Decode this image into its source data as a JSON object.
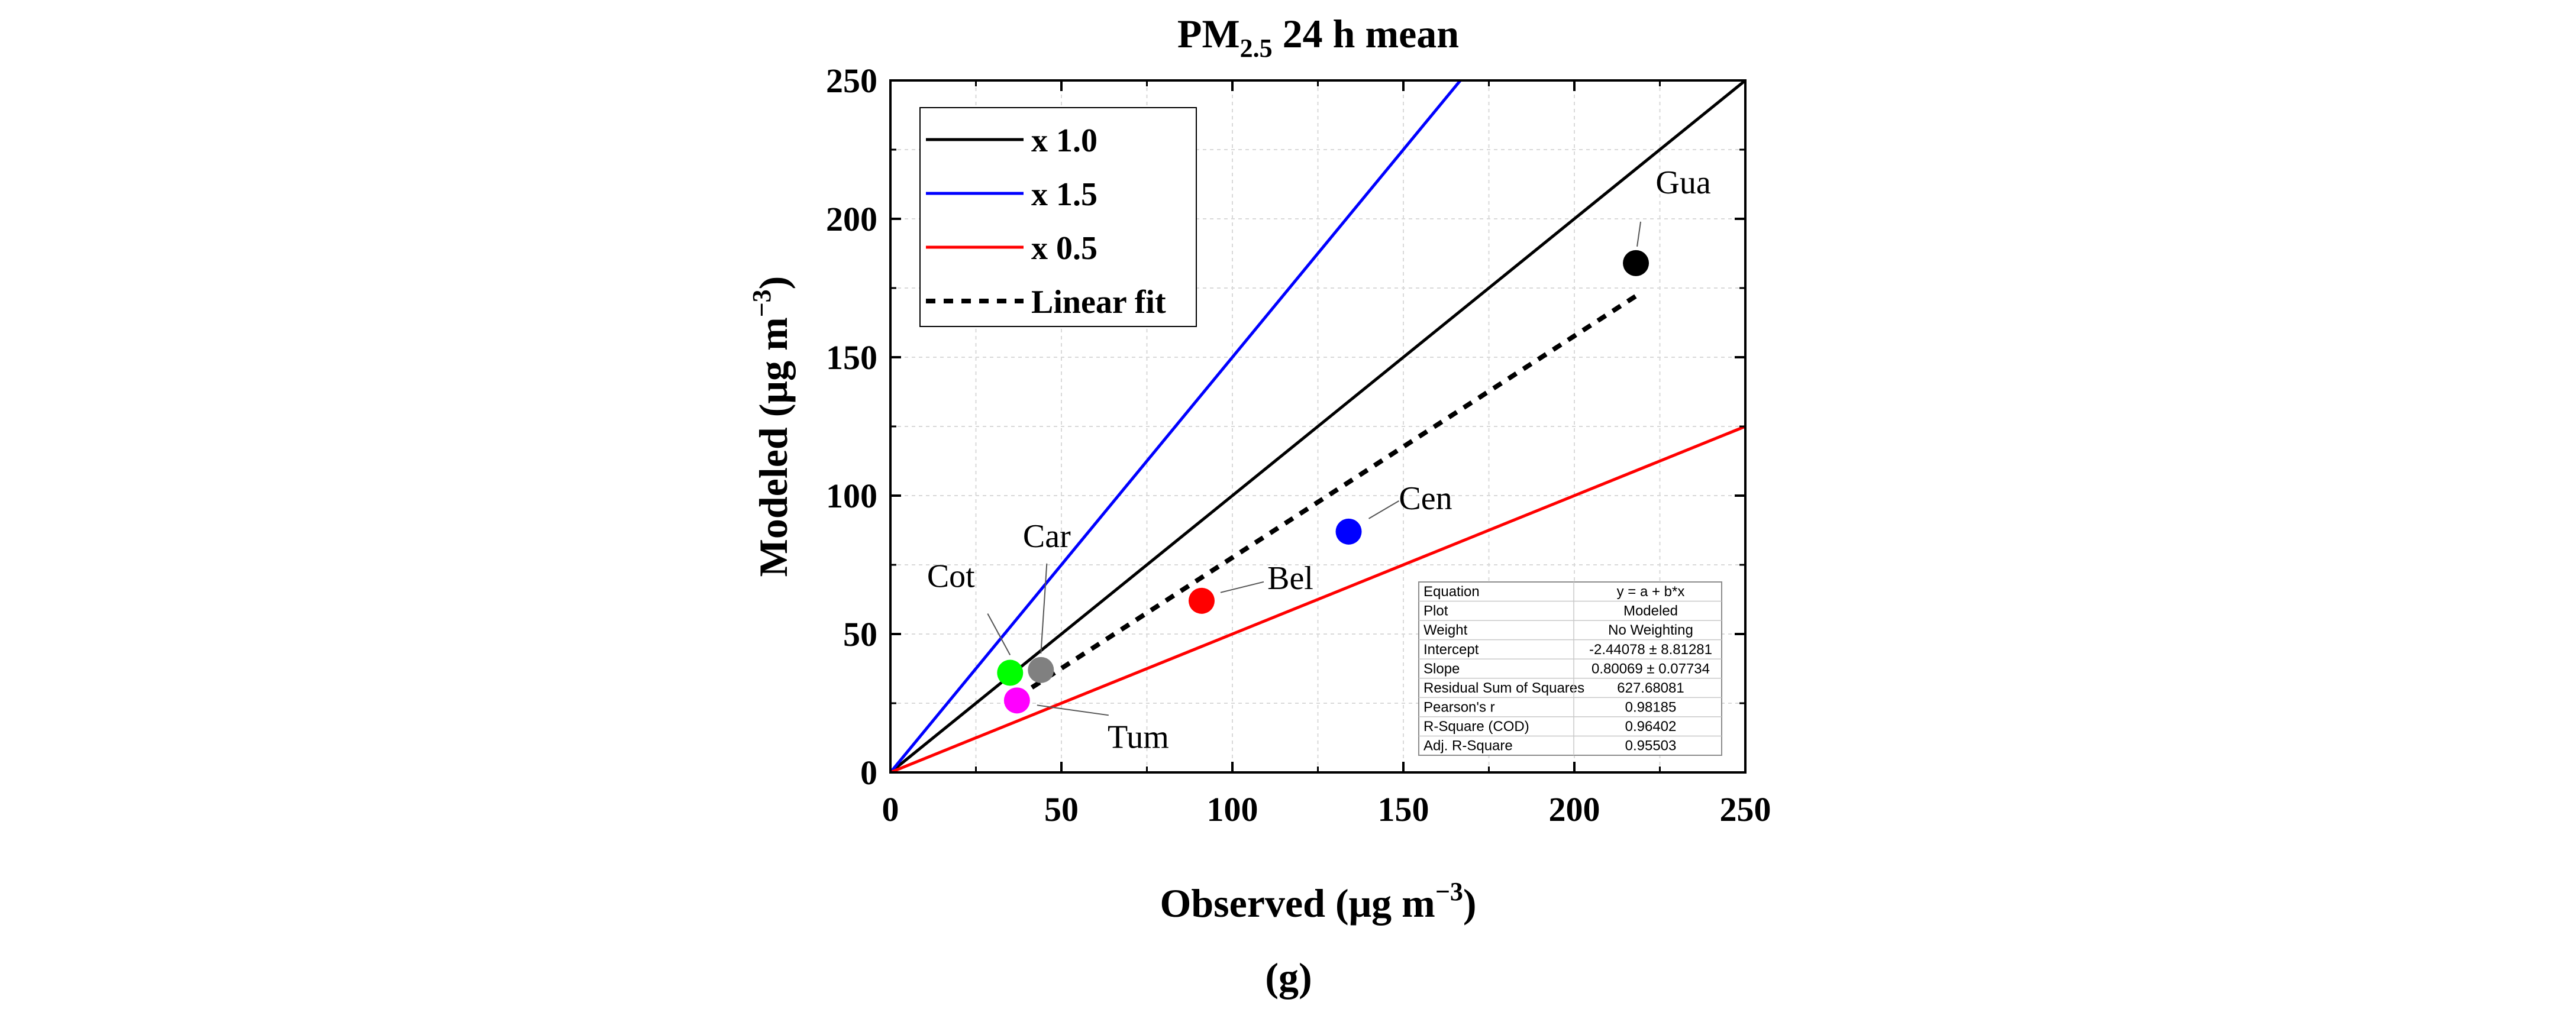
{
  "chart_data": {
    "type": "scatter",
    "title_main": "PM",
    "title_sub": "2.5",
    "title_rest": " 24 h mean",
    "panel_label": "(g)",
    "xlabel_main": "Observed (μg m",
    "xlabel_sup": "−3",
    "xlabel_close": ")",
    "ylabel_main": "Modeled (μg m",
    "ylabel_sup": "−3",
    "ylabel_close": ")",
    "xlim": [
      0,
      250
    ],
    "ylim": [
      0,
      250
    ],
    "x_ticks": [
      0,
      50,
      100,
      150,
      200,
      250
    ],
    "y_ticks": [
      0,
      50,
      100,
      150,
      200,
      250
    ],
    "x_tick_labels": [
      "0",
      "50",
      "100",
      "150",
      "200",
      "250"
    ],
    "y_tick_labels": [
      "0",
      "50",
      "100",
      "150",
      "200",
      "250"
    ],
    "grid": true,
    "reference_lines": [
      {
        "label": "x 1.0",
        "slope": 1.0,
        "color": "#000000"
      },
      {
        "label": "x 1.5",
        "slope": 1.5,
        "color": "#0000ff"
      },
      {
        "label": "x 0.5",
        "slope": 0.5,
        "color": "#ff0000"
      }
    ],
    "fit": {
      "label": "Linear fit",
      "intercept": -2.44078,
      "slope": 0.80069,
      "x_range": [
        37,
        218
      ],
      "color": "#000000"
    },
    "legend_position": "top-left",
    "points": [
      {
        "label": "Gua",
        "x": 218,
        "y": 184,
        "color": "#000000"
      },
      {
        "label": "Cen",
        "x": 134,
        "y": 87,
        "color": "#0000ff"
      },
      {
        "label": "Bel",
        "x": 91,
        "y": 62,
        "color": "#ff0000"
      },
      {
        "label": "Car",
        "x": 44,
        "y": 37,
        "color": "#808080"
      },
      {
        "label": "Cot",
        "x": 35,
        "y": 36,
        "color": "#00ff00"
      },
      {
        "label": "Tum",
        "x": 37,
        "y": 26,
        "color": "#ff00ff"
      }
    ],
    "stats_table": [
      [
        "Equation",
        "y = a + b*x"
      ],
      [
        "Plot",
        "Modeled"
      ],
      [
        "Weight",
        "No Weighting"
      ],
      [
        "Intercept",
        "-2.44078 ± 8.81281"
      ],
      [
        "Slope",
        "0.80069 ± 0.07734"
      ],
      [
        "Residual Sum of Squares",
        "627.68081"
      ],
      [
        "Pearson's r",
        "0.98185"
      ],
      [
        "R-Square (COD)",
        "0.96402"
      ],
      [
        "Adj. R-Square",
        "0.95503"
      ]
    ]
  }
}
